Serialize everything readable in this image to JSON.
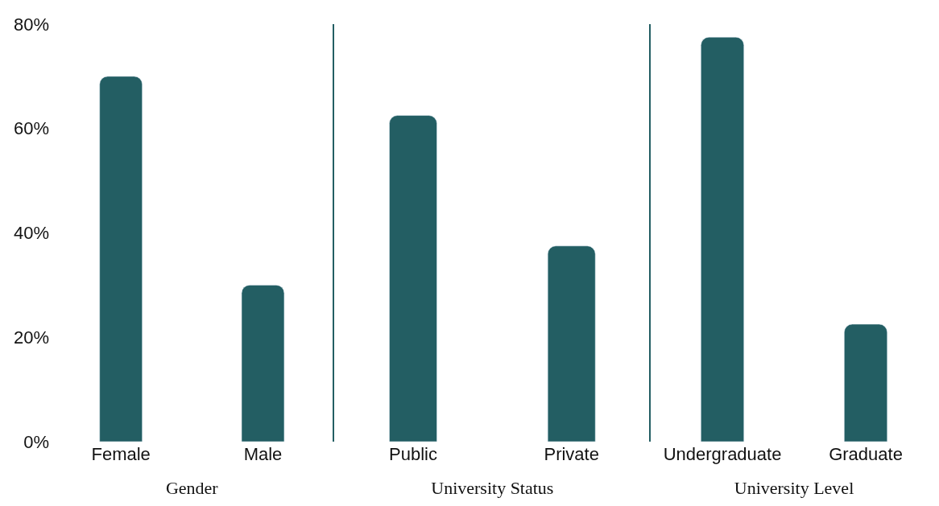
{
  "chart_data": [
    {
      "type": "bar",
      "xlabel": "Gender",
      "categories": [
        "Female",
        "Male"
      ],
      "values": [
        70,
        30
      ],
      "color": "#235e63",
      "ylim": [
        0,
        80
      ],
      "yticks": [
        {
          "value": 0,
          "label": "0%"
        },
        {
          "value": 20,
          "label": "20%"
        },
        {
          "value": 40,
          "label": "40%"
        },
        {
          "value": 60,
          "label": "60%"
        },
        {
          "value": 80,
          "label": "80%"
        }
      ]
    },
    {
      "type": "bar",
      "xlabel": "University Status",
      "categories": [
        "Public",
        "Private"
      ],
      "values": [
        62.5,
        37.5
      ],
      "color": "#235e63",
      "ylim": [
        0,
        80
      ],
      "tick_labels": "x"
    },
    {
      "type": "bar",
      "xlabel": "University Level",
      "categories": [
        "Undergraduate",
        "Graduate"
      ],
      "values": [
        77.5,
        22.5
      ],
      "color": "#235e63",
      "ylim": [
        0,
        80
      ],
      "tick_labels": "x"
    }
  ]
}
